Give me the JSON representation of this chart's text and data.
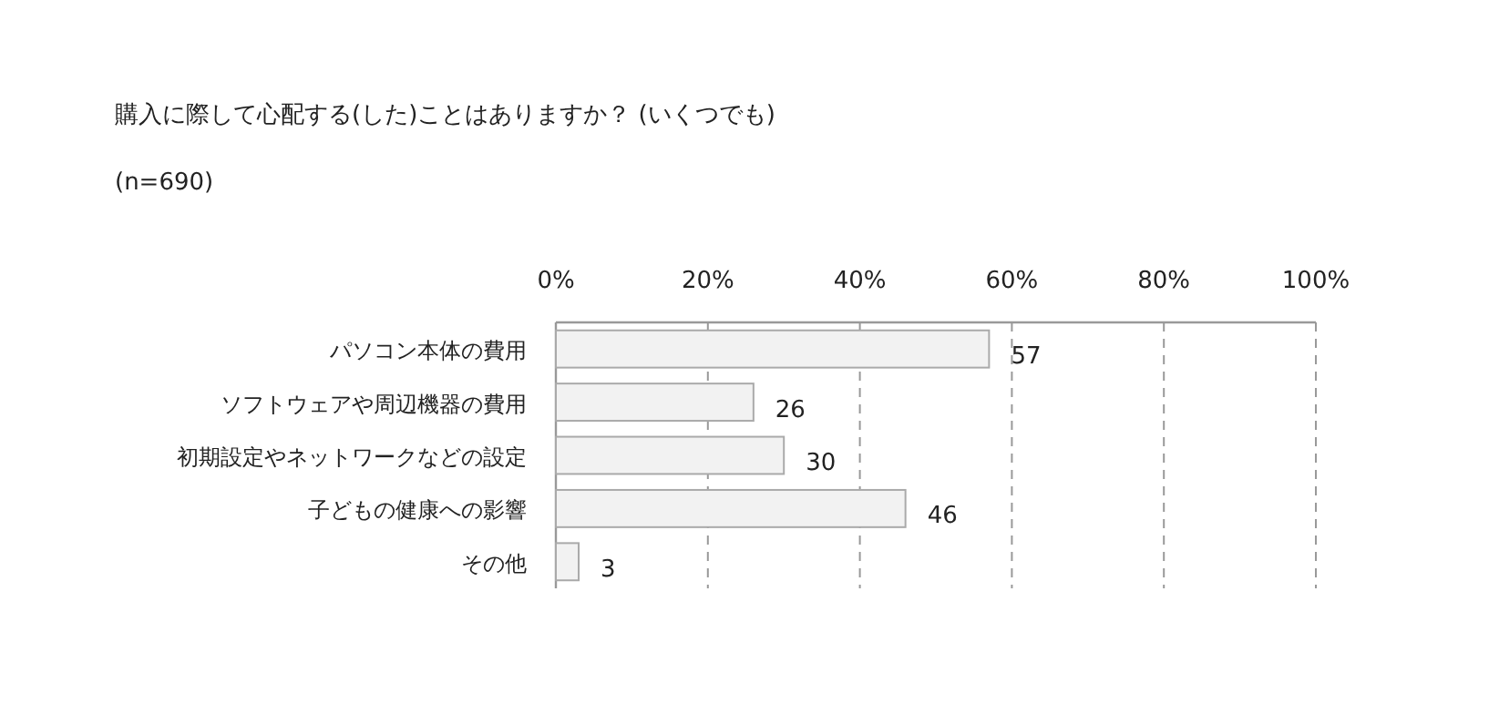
{
  "chart_data": {
    "type": "bar",
    "orientation": "horizontal",
    "title": "購入に際して心配する(した)ことはありますか？ (いくつでも)",
    "subtitle": "(n=690)",
    "categories": [
      "パソコン本体の費用",
      "ソフトウェアや周辺機器の費用",
      "初期設定やネットワークなどの設定",
      "子どもの健康への影響",
      "その他"
    ],
    "values": [
      57,
      26,
      30,
      46,
      3
    ],
    "color": "#f2f2f2",
    "xlim": [
      0,
      100
    ],
    "xticks": [
      {
        "value": 0,
        "label": "0%"
      },
      {
        "value": 20,
        "label": "20%"
      },
      {
        "value": 40,
        "label": "40%"
      },
      {
        "value": 60,
        "label": "60%"
      },
      {
        "value": 80,
        "label": "80%"
      },
      {
        "value": 100,
        "label": "100%"
      }
    ],
    "grid": "x",
    "data_labels": true
  }
}
